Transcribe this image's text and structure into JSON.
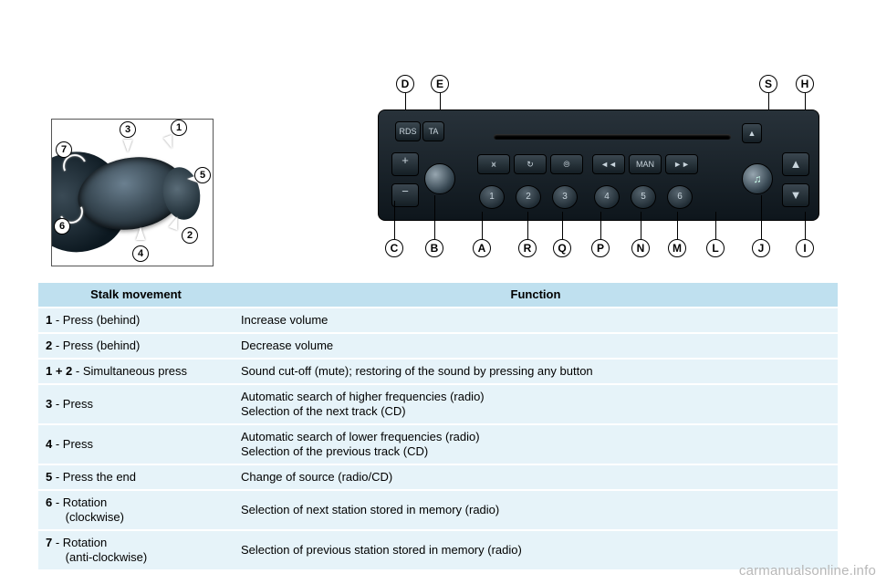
{
  "stalk": {
    "callouts": [
      "1",
      "2",
      "3",
      "4",
      "5",
      "6",
      "7"
    ]
  },
  "radio": {
    "letters_top": [
      "D",
      "E",
      "S",
      "H"
    ],
    "letters_bottom": [
      "C",
      "B",
      "A",
      "R",
      "Q",
      "P",
      "N",
      "M",
      "L",
      "J",
      "I"
    ],
    "preset_numbers": [
      "1",
      "2",
      "3",
      "4",
      "5",
      "6"
    ],
    "rds": "RDS",
    "ta": "TA",
    "man": "MAN",
    "plus": "+",
    "minus": "−",
    "note": "♫",
    "eject": "▲",
    "up": "▲",
    "down": "▼",
    "rev": "◄◄",
    "fwd": "►►"
  },
  "table": {
    "headers": [
      "Stalk movement",
      "Function"
    ],
    "rows": [
      {
        "num": "1",
        "move": " - Press (behind)",
        "func": "Increase volume"
      },
      {
        "num": "2",
        "move": " - Press (behind)",
        "func": "Decrease volume"
      },
      {
        "num": "1 + 2",
        "move": " - Simultaneous press",
        "func": "Sound cut-off (mute); restoring of the sound by pressing any button"
      },
      {
        "num": "3",
        "move": " - Press",
        "func": "Automatic search of higher frequencies (radio)\nSelection of the next track (CD)"
      },
      {
        "num": "4",
        "move": " - Press",
        "func": "Automatic search of lower frequencies (radio)\nSelection of the previous track (CD)"
      },
      {
        "num": "5",
        "move": " - Press the end",
        "func": "Change of source (radio/CD)"
      },
      {
        "num": "6",
        "move": " - Rotation\n      (clockwise)",
        "func": "Selection of next station stored in memory (radio)"
      },
      {
        "num": "7",
        "move": " - Rotation\n      (anti-clockwise)",
        "func": "Selection of previous station stored in memory (radio)"
      }
    ]
  },
  "watermark": "carmanualsonline.info"
}
